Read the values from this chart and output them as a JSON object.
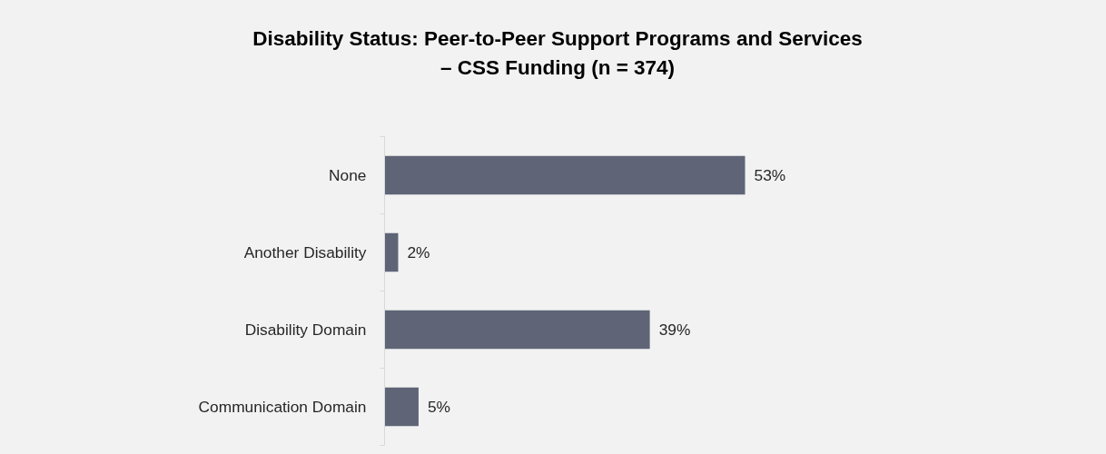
{
  "chart_data": {
    "type": "bar",
    "orientation": "horizontal",
    "title": "Disability Status: Peer-to-Peer Support Programs and Services\n– CSS Funding (n = 374)",
    "categories": [
      "None",
      "Another Disability",
      "Disability Domain",
      "Communication Domain"
    ],
    "values": [
      53,
      2,
      39,
      5
    ],
    "color": "#5f6577",
    "data_labels": true,
    "value_labels": [
      "53%",
      "2%",
      "39%",
      "5%"
    ],
    "tick_labels": "y",
    "grid": false
  }
}
